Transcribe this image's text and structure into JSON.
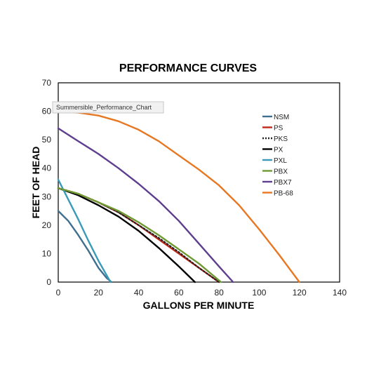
{
  "chart_data": {
    "type": "line",
    "title": "PERFORMANCE CURVES",
    "xlabel": "GALLONS PER MINUTE",
    "ylabel": "FEET OF HEAD",
    "xlim": [
      0,
      140
    ],
    "ylim": [
      0,
      70
    ],
    "xticks": [
      0,
      20,
      40,
      60,
      80,
      100,
      120,
      140
    ],
    "yticks": [
      0,
      10,
      20,
      30,
      40,
      50,
      60,
      70
    ],
    "grid": false,
    "legend_position": "top-right",
    "tooltip": "Summersible_Performance_Chart",
    "series": [
      {
        "name": "NSM",
        "color": "#3f6f8f",
        "dash": "solid",
        "x": [
          0,
          5,
          10,
          15,
          20,
          24,
          26.5
        ],
        "y": [
          25,
          21.5,
          16.5,
          11,
          5,
          1.5,
          0
        ]
      },
      {
        "name": "PS",
        "color": "#c0281a",
        "dash": "solid",
        "x": [
          0,
          10,
          20,
          30,
          40,
          50,
          60,
          70,
          80
        ],
        "y": [
          33,
          31,
          28,
          24.5,
          20,
          15,
          10,
          5,
          0
        ]
      },
      {
        "name": "PKS",
        "color": "#222222",
        "dash": "dotted",
        "x": [
          0,
          10,
          20,
          30,
          40,
          50,
          60,
          70,
          80
        ],
        "y": [
          33,
          31,
          28,
          24.5,
          20,
          15.5,
          10.5,
          5,
          0
        ]
      },
      {
        "name": "PX",
        "color": "#000000",
        "dash": "solid",
        "x": [
          0,
          10,
          20,
          30,
          40,
          50,
          60,
          68
        ],
        "y": [
          33,
          30.5,
          27,
          23,
          18,
          12,
          5.5,
          0
        ]
      },
      {
        "name": "PXL",
        "color": "#3a9ab8",
        "dash": "solid",
        "x": [
          0,
          5,
          10,
          15,
          20,
          26
        ],
        "y": [
          36,
          29,
          22,
          14.5,
          7.5,
          0
        ]
      },
      {
        "name": "PBX",
        "color": "#6f9a33",
        "dash": "solid",
        "x": [
          0,
          10,
          20,
          30,
          40,
          50,
          60,
          70,
          81
        ],
        "y": [
          33,
          31,
          28,
          25,
          21,
          16.5,
          11.5,
          6.5,
          0
        ]
      },
      {
        "name": "PBX7",
        "color": "#5e3f8f",
        "dash": "solid",
        "x": [
          0,
          10,
          20,
          30,
          40,
          50,
          60,
          70,
          80,
          87
        ],
        "y": [
          54,
          49.5,
          45,
          40,
          34.5,
          28.5,
          21.5,
          13.5,
          5.5,
          0
        ]
      },
      {
        "name": "PB-68",
        "color": "#e87722",
        "dash": "solid",
        "x": [
          0,
          10,
          20,
          30,
          40,
          50,
          60,
          70,
          80,
          90,
          100,
          110,
          120
        ],
        "y": [
          60,
          59.5,
          58.5,
          56.5,
          53.5,
          49.5,
          44.5,
          39.5,
          34,
          27,
          18.5,
          9.5,
          0
        ]
      }
    ]
  }
}
